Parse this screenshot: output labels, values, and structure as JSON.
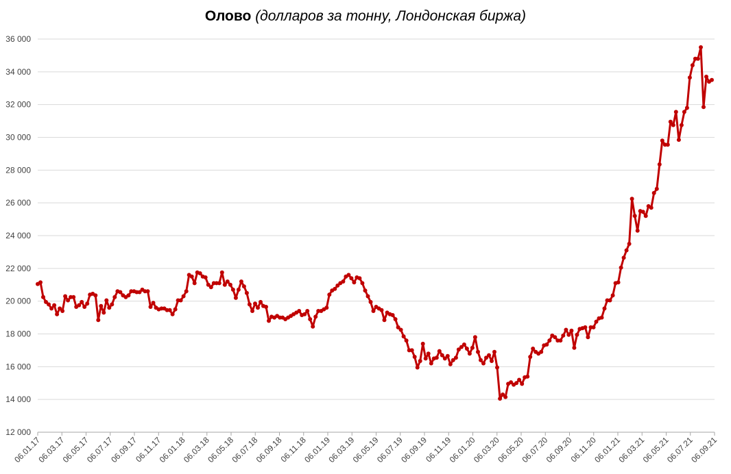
{
  "chart_data": {
    "type": "line",
    "title": "Олово",
    "subtitle": "(долларов за тонну, Лондонская биржа)",
    "ylim": [
      12000,
      36000
    ],
    "y_ticks": [
      12000,
      14000,
      16000,
      18000,
      20000,
      22000,
      24000,
      26000,
      28000,
      30000,
      32000,
      34000,
      36000
    ],
    "y_tick_labels": [
      "12 000",
      "14 000",
      "16 000",
      "18 000",
      "20 000",
      "22 000",
      "24 000",
      "26 000",
      "28 000",
      "30 000",
      "32 000",
      "34 000",
      "36 000"
    ],
    "x_tick_labels": [
      "06.01.17",
      "06.03.17",
      "06.05.17",
      "06.07.17",
      "06.09.17",
      "06.11.17",
      "06.01.18",
      "06.03.18",
      "06.05.18",
      "06.07.18",
      "06.09.18",
      "06.11.18",
      "06.01.19",
      "06.03.19",
      "06.05.19",
      "06.07.19",
      "06.09.19",
      "06.11.19",
      "06.01.20",
      "06.03.20",
      "06.05.20",
      "06.07.20",
      "06.09.20",
      "06.11.20",
      "06.01.21",
      "06.03.21",
      "06.05.21",
      "06.07.21",
      "06.09.21"
    ],
    "grid": true,
    "legend": "none",
    "line_color": "#c00000",
    "series": [
      {
        "values": [
          21050,
          21150,
          20250,
          19950,
          19800,
          19550,
          19750,
          19200,
          19550,
          19400,
          20300,
          20050,
          20250,
          20250,
          19650,
          19750,
          19950,
          19650,
          19850,
          20400,
          20450,
          20350,
          18850,
          19700,
          19300,
          20050,
          19600,
          19800,
          20250,
          20600,
          20550,
          20350,
          20250,
          20350,
          20600,
          20600,
          20550,
          20550,
          20700,
          20600,
          20600,
          19650,
          19900,
          19600,
          19500,
          19550,
          19550,
          19450,
          19450,
          19200,
          19500,
          20050,
          20050,
          20300,
          20600,
          21600,
          21500,
          21100,
          21750,
          21700,
          21500,
          21450,
          21000,
          20850,
          21100,
          21100,
          21100,
          21750,
          21000,
          21200,
          21000,
          20700,
          20200,
          20700,
          21200,
          20900,
          20500,
          19800,
          19400,
          19850,
          19600,
          19950,
          19700,
          19650,
          18800,
          19050,
          19000,
          19100,
          19000,
          19000,
          18900,
          19000,
          19100,
          19200,
          19300,
          19400,
          19150,
          19200,
          19400,
          18900,
          18450,
          19050,
          19400,
          19400,
          19500,
          19600,
          20400,
          20650,
          20750,
          20950,
          21100,
          21200,
          21500,
          21600,
          21400,
          21150,
          21450,
          21400,
          21100,
          20650,
          20300,
          19950,
          19400,
          19650,
          19550,
          19450,
          18850,
          19300,
          19200,
          19150,
          18900,
          18400,
          18250,
          17850,
          17600,
          17000,
          17000,
          16600,
          15950,
          16350,
          17400,
          16500,
          16800,
          16200,
          16500,
          16550,
          16950,
          16700,
          16500,
          16650,
          16150,
          16400,
          16550,
          17050,
          17200,
          17350,
          17100,
          16800,
          17150,
          17800,
          16900,
          16400,
          16200,
          16550,
          16700,
          16350,
          16900,
          15950,
          14050,
          14300,
          14150,
          14950,
          15050,
          14900,
          15000,
          15200,
          14950,
          15350,
          15400,
          16600,
          17100,
          16900,
          16800,
          16900,
          17300,
          17350,
          17600,
          17900,
          17800,
          17600,
          17600,
          17900,
          18250,
          17950,
          18200,
          17150,
          17950,
          18300,
          18350,
          18400,
          17800,
          18400,
          18400,
          18750,
          18950,
          19000,
          19550,
          20050,
          20050,
          20350,
          21100,
          21150,
          22050,
          22650,
          23100,
          23500,
          26250,
          25200,
          24300,
          25500,
          25450,
          25200,
          25800,
          25700,
          26600,
          26850,
          28350,
          29800,
          29550,
          29550,
          30950,
          30750,
          31550,
          29850,
          30750,
          31550,
          31800,
          33650,
          34400,
          34800,
          34800,
          35500,
          31850,
          33700,
          33400,
          33500
        ]
      }
    ]
  }
}
